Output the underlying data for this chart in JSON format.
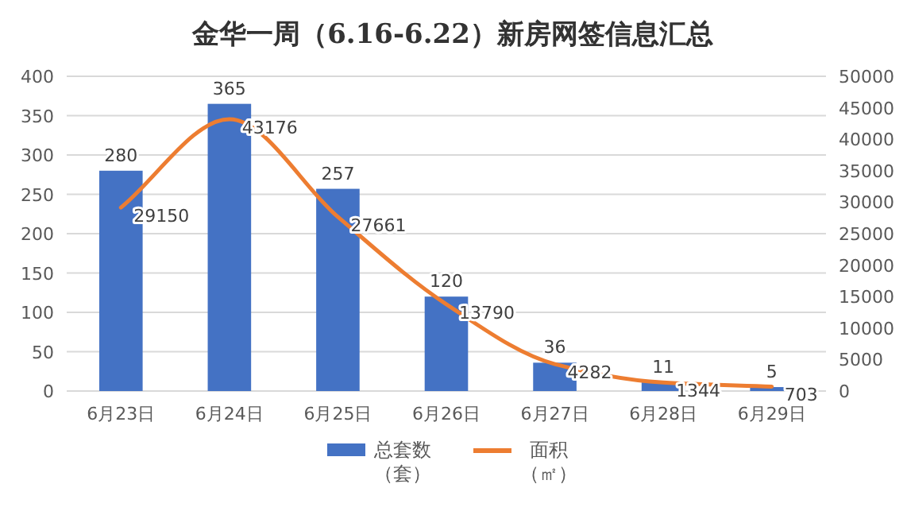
{
  "chart_data": {
    "type": "bar",
    "title": "金华一周（6.16-6.22）新房网签信息汇总",
    "categories": [
      "6月23日",
      "6月24日",
      "6月25日",
      "6月26日",
      "6月27日",
      "6月28日",
      "6月29日"
    ],
    "series": [
      {
        "name": "总套数（套）",
        "color": "#4472c4",
        "values": [
          280,
          365,
          257,
          120,
          36,
          11,
          5
        ]
      },
      {
        "name": "面积（㎡）",
        "type": "line",
        "axis": "y2",
        "color": "#ed7d31",
        "values": [
          29150,
          43176,
          27661,
          13790,
          4282,
          1344,
          703
        ]
      }
    ],
    "ylim": [
      0,
      400
    ],
    "yticks": [
      0,
      50,
      100,
      150,
      200,
      250,
      300,
      350,
      400
    ],
    "y2lim": [
      0,
      50000
    ],
    "y2ticks": [
      0,
      5000,
      10000,
      15000,
      20000,
      25000,
      30000,
      35000,
      40000,
      45000,
      50000
    ],
    "grid": "y",
    "legend": "bottom",
    "data_labels": true,
    "marker": "none",
    "line_style": "solid"
  }
}
